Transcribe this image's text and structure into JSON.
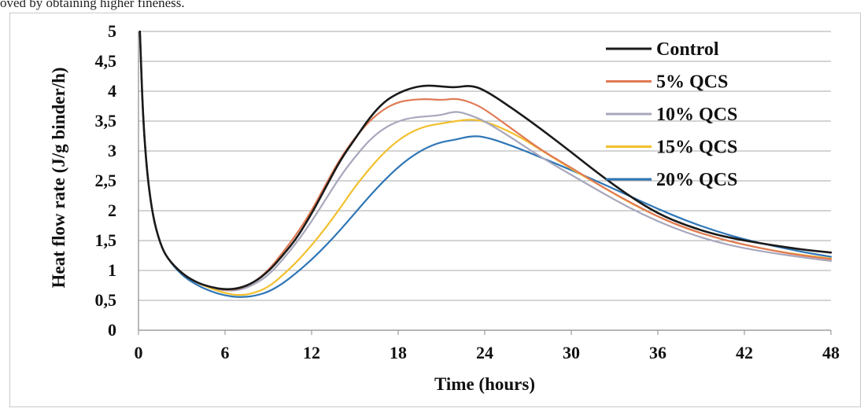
{
  "caption_fragment": "oved by obtaining higher fineness.",
  "chart_data": {
    "type": "line",
    "title": "",
    "xlabel": "Time (hours)",
    "ylabel": "Heat flow rate (J/g binder/h)",
    "xlim": [
      0,
      48
    ],
    "ylim": [
      0,
      5
    ],
    "xticks": [
      0,
      6,
      12,
      18,
      24,
      30,
      36,
      42,
      48
    ],
    "xtick_labels": [
      "0",
      "6",
      "12",
      "18",
      "24",
      "30",
      "36",
      "42",
      "48"
    ],
    "yticks": [
      0,
      0.5,
      1,
      1.5,
      2,
      2.5,
      3,
      3.5,
      4,
      4.5,
      5
    ],
    "ytick_labels": [
      "0",
      "0,5",
      "1",
      "1,5",
      "2",
      "2,5",
      "3",
      "3,5",
      "4",
      "4,5",
      "5"
    ],
    "grid": true,
    "legend_position": "top-right",
    "series": [
      {
        "name": "Control",
        "color": "#1a1a1a",
        "points": [
          [
            0.1,
            5
          ],
          [
            0.3,
            3.6
          ],
          [
            0.6,
            2.6
          ],
          [
            1,
            1.9
          ],
          [
            1.5,
            1.45
          ],
          [
            2,
            1.2
          ],
          [
            3,
            0.95
          ],
          [
            4,
            0.8
          ],
          [
            5,
            0.72
          ],
          [
            6,
            0.68
          ],
          [
            7,
            0.7
          ],
          [
            8,
            0.8
          ],
          [
            9,
            0.98
          ],
          [
            10,
            1.25
          ],
          [
            11,
            1.55
          ],
          [
            12,
            1.95
          ],
          [
            13,
            2.4
          ],
          [
            14,
            2.85
          ],
          [
            15,
            3.2
          ],
          [
            16,
            3.55
          ],
          [
            17,
            3.82
          ],
          [
            18,
            3.97
          ],
          [
            19,
            4.06
          ],
          [
            20,
            4.1
          ],
          [
            21,
            4.08
          ],
          [
            22,
            4.06
          ],
          [
            23,
            4.1
          ],
          [
            24,
            4.02
          ],
          [
            26,
            3.7
          ],
          [
            28,
            3.35
          ],
          [
            30,
            2.98
          ],
          [
            32,
            2.6
          ],
          [
            34,
            2.25
          ],
          [
            36,
            1.95
          ],
          [
            38,
            1.75
          ],
          [
            40,
            1.6
          ],
          [
            42,
            1.5
          ],
          [
            44,
            1.42
          ],
          [
            46,
            1.35
          ],
          [
            48,
            1.3
          ]
        ]
      },
      {
        "name": "5% QCS",
        "color": "#e07a55",
        "points": [
          [
            0.1,
            5
          ],
          [
            0.3,
            3.6
          ],
          [
            0.6,
            2.6
          ],
          [
            1,
            1.9
          ],
          [
            1.5,
            1.45
          ],
          [
            2,
            1.2
          ],
          [
            3,
            0.95
          ],
          [
            4,
            0.8
          ],
          [
            5,
            0.72
          ],
          [
            6,
            0.67
          ],
          [
            7,
            0.69
          ],
          [
            8,
            0.8
          ],
          [
            9,
            1.0
          ],
          [
            10,
            1.3
          ],
          [
            11,
            1.62
          ],
          [
            12,
            2.0
          ],
          [
            13,
            2.45
          ],
          [
            14,
            2.88
          ],
          [
            15,
            3.22
          ],
          [
            16,
            3.5
          ],
          [
            17,
            3.7
          ],
          [
            18,
            3.82
          ],
          [
            19,
            3.86
          ],
          [
            20,
            3.87
          ],
          [
            21,
            3.85
          ],
          [
            22,
            3.88
          ],
          [
            23,
            3.82
          ],
          [
            24,
            3.7
          ],
          [
            26,
            3.35
          ],
          [
            28,
            3.0
          ],
          [
            30,
            2.72
          ],
          [
            32,
            2.42
          ],
          [
            34,
            2.15
          ],
          [
            36,
            1.9
          ],
          [
            38,
            1.7
          ],
          [
            40,
            1.55
          ],
          [
            42,
            1.43
          ],
          [
            44,
            1.33
          ],
          [
            46,
            1.25
          ],
          [
            48,
            1.19
          ]
        ]
      },
      {
        "name": "10% QCS",
        "color": "#a7a7bd",
        "points": [
          [
            0.1,
            5
          ],
          [
            0.3,
            3.6
          ],
          [
            0.6,
            2.6
          ],
          [
            1,
            1.9
          ],
          [
            1.5,
            1.45
          ],
          [
            2,
            1.2
          ],
          [
            3,
            0.95
          ],
          [
            4,
            0.8
          ],
          [
            5,
            0.72
          ],
          [
            6,
            0.66
          ],
          [
            7,
            0.67
          ],
          [
            8,
            0.76
          ],
          [
            9,
            0.92
          ],
          [
            10,
            1.18
          ],
          [
            11,
            1.48
          ],
          [
            12,
            1.82
          ],
          [
            13,
            2.2
          ],
          [
            14,
            2.58
          ],
          [
            15,
            2.9
          ],
          [
            16,
            3.18
          ],
          [
            17,
            3.38
          ],
          [
            18,
            3.5
          ],
          [
            19,
            3.56
          ],
          [
            20,
            3.58
          ],
          [
            21,
            3.6
          ],
          [
            22,
            3.67
          ],
          [
            23,
            3.6
          ],
          [
            24,
            3.5
          ],
          [
            26,
            3.2
          ],
          [
            28,
            2.88
          ],
          [
            30,
            2.6
          ],
          [
            32,
            2.32
          ],
          [
            34,
            2.05
          ],
          [
            36,
            1.82
          ],
          [
            38,
            1.63
          ],
          [
            40,
            1.48
          ],
          [
            42,
            1.37
          ],
          [
            44,
            1.29
          ],
          [
            46,
            1.22
          ],
          [
            48,
            1.16
          ]
        ]
      },
      {
        "name": "15% QCS",
        "color": "#f2c02e",
        "points": [
          [
            0.1,
            5
          ],
          [
            0.3,
            3.6
          ],
          [
            0.6,
            2.6
          ],
          [
            1,
            1.9
          ],
          [
            1.5,
            1.45
          ],
          [
            2,
            1.2
          ],
          [
            3,
            0.95
          ],
          [
            4,
            0.8
          ],
          [
            5,
            0.7
          ],
          [
            6,
            0.62
          ],
          [
            7,
            0.58
          ],
          [
            8,
            0.62
          ],
          [
            9,
            0.72
          ],
          [
            10,
            0.92
          ],
          [
            11,
            1.15
          ],
          [
            12,
            1.42
          ],
          [
            13,
            1.72
          ],
          [
            14,
            2.05
          ],
          [
            15,
            2.4
          ],
          [
            16,
            2.7
          ],
          [
            17,
            2.97
          ],
          [
            18,
            3.18
          ],
          [
            19,
            3.33
          ],
          [
            20,
            3.42
          ],
          [
            21,
            3.46
          ],
          [
            22,
            3.5
          ],
          [
            23,
            3.53
          ],
          [
            24,
            3.5
          ],
          [
            26,
            3.3
          ],
          [
            28,
            3.0
          ],
          [
            30,
            2.7
          ],
          [
            32,
            2.42
          ],
          [
            34,
            2.14
          ],
          [
            36,
            1.9
          ],
          [
            38,
            1.7
          ],
          [
            40,
            1.55
          ],
          [
            42,
            1.43
          ],
          [
            44,
            1.33
          ],
          [
            46,
            1.26
          ],
          [
            48,
            1.2
          ]
        ]
      },
      {
        "name": "20% QCS",
        "color": "#2f76b6",
        "points": [
          [
            0.1,
            5
          ],
          [
            0.3,
            3.6
          ],
          [
            0.6,
            2.6
          ],
          [
            1,
            1.9
          ],
          [
            1.5,
            1.45
          ],
          [
            2,
            1.2
          ],
          [
            3,
            0.92
          ],
          [
            4,
            0.76
          ],
          [
            5,
            0.65
          ],
          [
            6,
            0.58
          ],
          [
            7,
            0.55
          ],
          [
            8,
            0.57
          ],
          [
            9,
            0.64
          ],
          [
            10,
            0.78
          ],
          [
            11,
            0.97
          ],
          [
            12,
            1.18
          ],
          [
            13,
            1.42
          ],
          [
            14,
            1.68
          ],
          [
            15,
            1.96
          ],
          [
            16,
            2.24
          ],
          [
            17,
            2.5
          ],
          [
            18,
            2.73
          ],
          [
            19,
            2.92
          ],
          [
            20,
            3.06
          ],
          [
            21,
            3.15
          ],
          [
            22,
            3.19
          ],
          [
            23,
            3.25
          ],
          [
            24,
            3.24
          ],
          [
            26,
            3.08
          ],
          [
            28,
            2.88
          ],
          [
            30,
            2.68
          ],
          [
            32,
            2.47
          ],
          [
            34,
            2.25
          ],
          [
            36,
            2.03
          ],
          [
            38,
            1.83
          ],
          [
            40,
            1.66
          ],
          [
            42,
            1.52
          ],
          [
            44,
            1.41
          ],
          [
            46,
            1.31
          ],
          [
            48,
            1.23
          ]
        ]
      }
    ]
  }
}
